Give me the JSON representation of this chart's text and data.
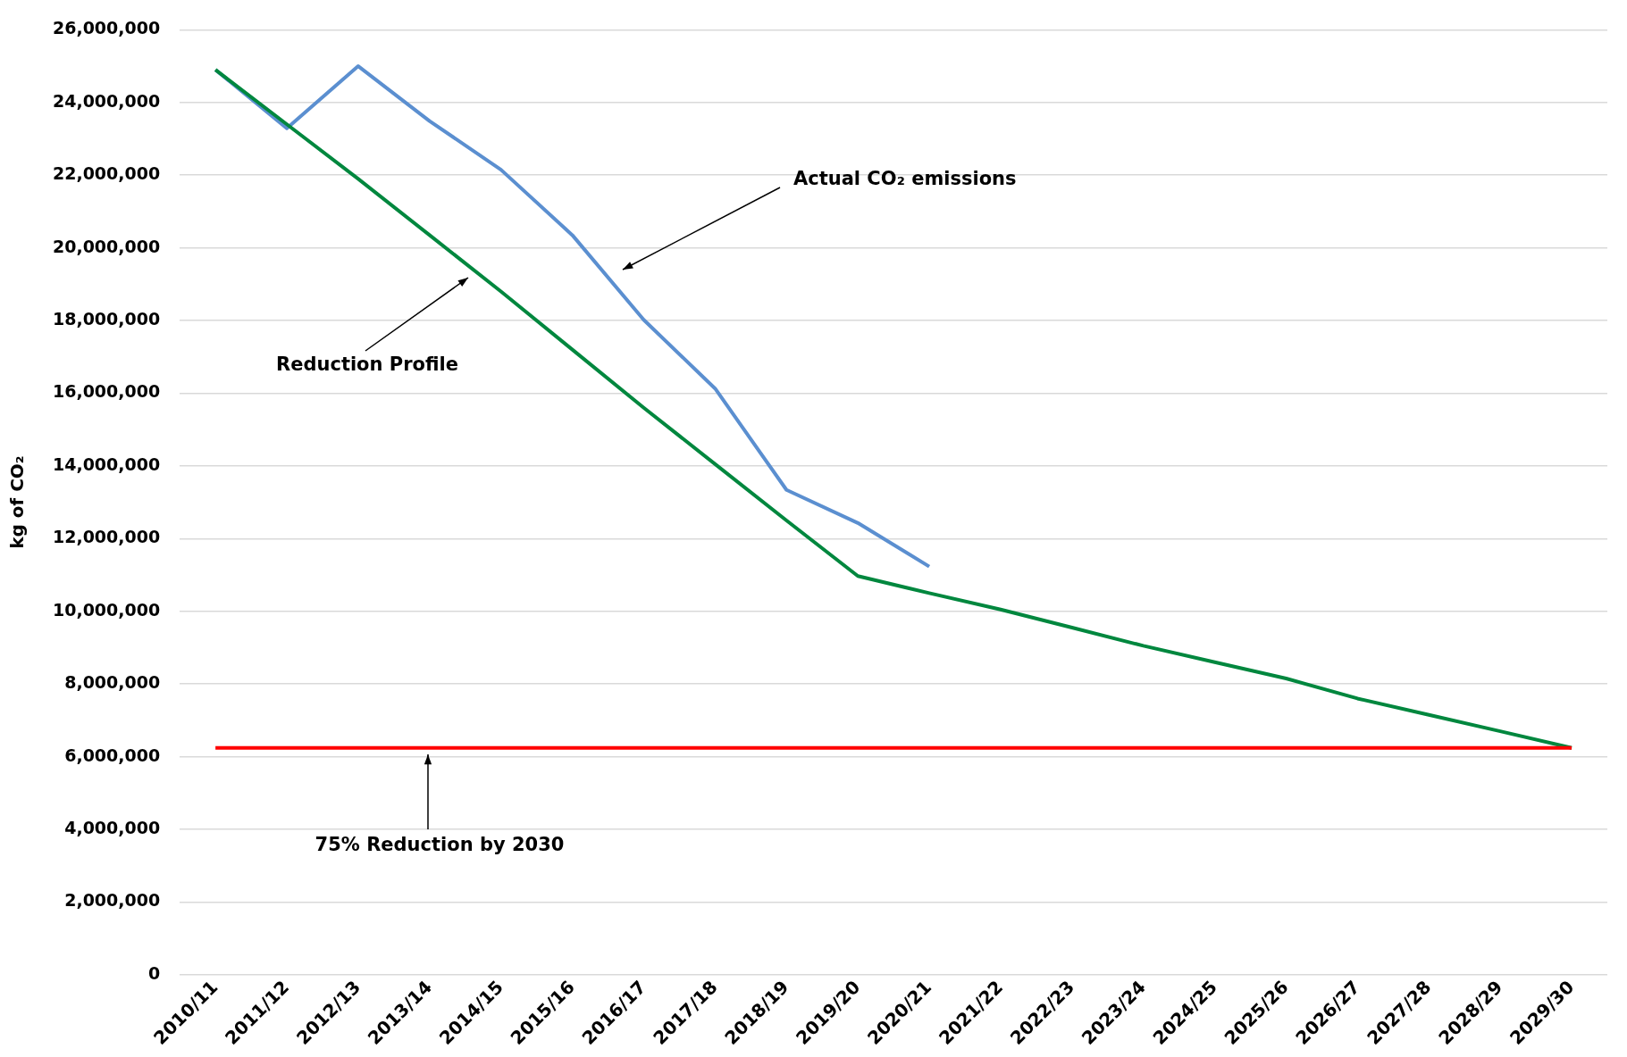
{
  "chart_data": {
    "type": "line",
    "ylabel": "kg of CO₂",
    "categories": [
      "2010/11",
      "2011/12",
      "2012/13",
      "2013/14",
      "2014/15",
      "2015/16",
      "2016/17",
      "2017/18",
      "2018/19",
      "2019/20",
      "2020/21",
      "2021/22",
      "2022/23",
      "2023/24",
      "2024/25",
      "2025/26",
      "2026/27",
      "2027/28",
      "2028/29",
      "2029/30"
    ],
    "series": [
      {
        "color": "#ff0000",
        "values": [
          6240000,
          6240000,
          6240000,
          6240000,
          6240000,
          6240000,
          6240000,
          6240000,
          6240000,
          6240000,
          6240000,
          6240000,
          6240000,
          6240000,
          6240000,
          6240000,
          6240000,
          6240000,
          6240000,
          6240000
        ]
      },
      {
        "color": "#00873e",
        "values": [
          24900000,
          23400000,
          21900000,
          20350000,
          18800000,
          17200000,
          15600000,
          14050000,
          12500000,
          10970000,
          10500000,
          10050000,
          9550000,
          9050000,
          8600000,
          8150000,
          7600000,
          7150000,
          6700000,
          6240000
        ]
      },
      {
        "color": "#5b8fd0",
        "values": [
          24900000,
          23290000,
          25000000,
          23490000,
          22150000,
          20350000,
          18020000,
          16130000,
          13340000,
          12430000,
          11230000,
          null,
          null,
          null,
          null,
          null,
          null,
          null,
          null,
          null
        ]
      }
    ],
    "ylim": [
      0,
      26000000
    ],
    "yticks": [
      0,
      {
        "value": 2000000,
        "label": "2,000,000"
      },
      {
        "value": 4000000,
        "label": "4,000,000"
      },
      {
        "value": 6000000,
        "label": "6,000,000"
      },
      {
        "value": 8000000,
        "label": "8,000,000"
      },
      {
        "value": 10000000,
        "label": "10,000,000"
      },
      {
        "value": 12000000,
        "label": "12,000,000"
      },
      {
        "value": 14000000,
        "label": "14,000,000"
      },
      {
        "value": 16000000,
        "label": "16,000,000"
      },
      {
        "value": 18000000,
        "label": "18,000,000"
      },
      {
        "value": 20000000,
        "label": "20,000,000"
      },
      {
        "value": 22000000,
        "label": "22,000,000"
      },
      {
        "value": 24000000,
        "label": "24,000,000"
      },
      {
        "value": 26000000,
        "label": "26,000,000"
      }
    ],
    "grid": "y",
    "legend": false,
    "marker": "none",
    "line_style": "solid",
    "annotations": [
      "Actual CO₂ emissions",
      "Reduction Profile",
      "75% Reduction by 2030"
    ]
  }
}
